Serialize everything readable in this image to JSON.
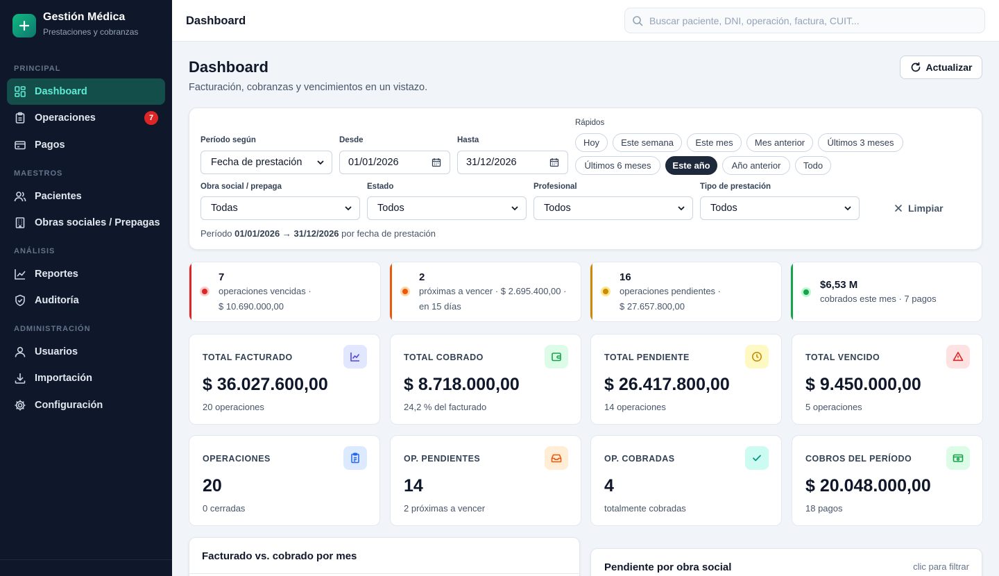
{
  "brand": {
    "title": "Gestión Médica",
    "subtitle": "Prestaciones y cobranzas"
  },
  "sidebar": {
    "sections": [
      "PRINCIPAL",
      "MAESTROS",
      "ANÁLISIS",
      "ADMINISTRACIÓN"
    ],
    "items": [
      {
        "label": "Dashboard",
        "icon": "dashboard-icon",
        "active": true
      },
      {
        "label": "Operaciones",
        "icon": "clipboard-icon",
        "badge": "7"
      },
      {
        "label": "Pagos",
        "icon": "card-icon"
      },
      {
        "label": "Pacientes",
        "icon": "users-icon"
      },
      {
        "label": "Obras sociales / Prepagas",
        "icon": "building-icon"
      },
      {
        "label": "Reportes",
        "icon": "chart-icon"
      },
      {
        "label": "Auditoría",
        "icon": "shield-icon"
      },
      {
        "label": "Usuarios",
        "icon": "user-icon"
      },
      {
        "label": "Importación",
        "icon": "download-icon"
      },
      {
        "label": "Configuración",
        "icon": "gear-icon"
      }
    ]
  },
  "topbar": {
    "title": "Dashboard",
    "search_placeholder": "Buscar paciente, DNI, operación, factura, CUIT..."
  },
  "header": {
    "title": "Dashboard",
    "subtitle": "Facturación, cobranzas y vencimientos en un vistazo.",
    "refresh_label": "Actualizar"
  },
  "filters": {
    "periodo_label": "Período según",
    "periodo_value": "Fecha de prestación",
    "desde_label": "Desde",
    "desde_value": "01/01/2026",
    "hasta_label": "Hasta",
    "hasta_value": "31/12/2026",
    "rapidos_label": "Rápidos",
    "chips": [
      "Hoy",
      "Este semana",
      "Este mes",
      "Mes anterior",
      "Últimos 3 meses",
      "Últimos 6 meses",
      "Este año",
      "Año anterior",
      "Todo"
    ],
    "active_chip": "Este año",
    "obra_label": "Obra social / prepaga",
    "obra_value": "Todas",
    "estado_label": "Estado",
    "estado_value": "Todos",
    "profesional_label": "Profesional",
    "profesional_value": "Todos",
    "tipo_label": "Tipo de prestación",
    "tipo_value": "Todos",
    "clear_label": "Limpiar",
    "period_prefix": "Período",
    "period_range": "01/01/2026 → 31/12/2026",
    "period_suffix": "por fecha de prestación"
  },
  "alerts": [
    {
      "num": "7",
      "line1": "operaciones vencidas ·",
      "line2": "$ 10.690.000,00",
      "color": "#dc2626",
      "ring": "#fecaca"
    },
    {
      "num": "2",
      "line1": "próximas a vencer · $ 2.695.400,00 ·",
      "line2": "en 15 días",
      "color": "#ea580c",
      "ring": "#fed7aa"
    },
    {
      "num": "16",
      "line1": "operaciones pendientes ·",
      "line2": "$ 27.657.800,00",
      "color": "#ca8a04",
      "ring": "#fde68a"
    },
    {
      "num": "$6,53 M",
      "line1": "cobrados este mes · 7 pagos",
      "line2": "",
      "color": "#16a34a",
      "ring": "#bbf7d0"
    }
  ],
  "kpis": [
    {
      "label": "TOTAL FACTURADO",
      "value": "$ 36.027.600,00",
      "sub": "20 operaciones",
      "icon": "trend-icon",
      "bg": "#e0e7ff",
      "fg": "#4f46e5"
    },
    {
      "label": "TOTAL COBRADO",
      "value": "$ 8.718.000,00",
      "sub": "24,2 % del facturado",
      "icon": "wallet-icon",
      "bg": "#dcfce7",
      "fg": "#16a34a"
    },
    {
      "label": "TOTAL PENDIENTE",
      "value": "$ 26.417.800,00",
      "sub": "14 operaciones",
      "icon": "clock-icon",
      "bg": "#fef9c3",
      "fg": "#ca8a04"
    },
    {
      "label": "TOTAL VENCIDO",
      "value": "$ 9.450.000,00",
      "sub": "5 operaciones",
      "icon": "alert-icon",
      "bg": "#fee2e2",
      "fg": "#dc2626"
    },
    {
      "label": "OPERACIONES",
      "value": "20",
      "sub": "0 cerradas",
      "icon": "clipboard-icon",
      "bg": "#dbeafe",
      "fg": "#2563eb"
    },
    {
      "label": "OP. PENDIENTES",
      "value": "14",
      "sub": "2 próximas a vencer",
      "icon": "inbox-icon",
      "bg": "#ffedd5",
      "fg": "#ea580c"
    },
    {
      "label": "OP. COBRADAS",
      "value": "4",
      "sub": "totalmente cobradas",
      "icon": "check-icon",
      "bg": "#ccfbf1",
      "fg": "#0d9488"
    },
    {
      "label": "COBROS DEL PERÍODO",
      "value": "$ 20.048.000,00",
      "sub": "18 pagos",
      "icon": "cash-icon",
      "bg": "#dcfce7",
      "fg": "#16a34a"
    }
  ],
  "panels": {
    "left_title": "Facturado vs. cobrado por mes",
    "right_title": "Pendiente por obra social",
    "right_hint": "clic para filtrar"
  }
}
